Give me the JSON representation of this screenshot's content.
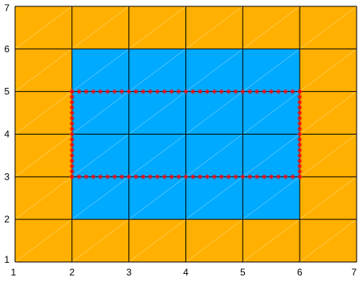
{
  "chart_data": {
    "type": "heatmap",
    "xlim": [
      1,
      7
    ],
    "ylim": [
      1,
      7
    ],
    "x_ticks": [
      "1",
      "2",
      "3",
      "4",
      "5",
      "6",
      "7"
    ],
    "y_ticks": [
      "1",
      "2",
      "3",
      "4",
      "5",
      "6",
      "7"
    ],
    "grid": true,
    "cells": [
      {
        "x": [
          1,
          2
        ],
        "y": [
          1,
          2
        ],
        "color": "#FFB000"
      },
      {
        "x": [
          2,
          3
        ],
        "y": [
          1,
          2
        ],
        "color": "#FFB000"
      },
      {
        "x": [
          3,
          4
        ],
        "y": [
          1,
          2
        ],
        "color": "#FFB000"
      },
      {
        "x": [
          4,
          5
        ],
        "y": [
          1,
          2
        ],
        "color": "#FFB000"
      },
      {
        "x": [
          5,
          6
        ],
        "y": [
          1,
          2
        ],
        "color": "#FFB000"
      },
      {
        "x": [
          6,
          7
        ],
        "y": [
          1,
          2
        ],
        "color": "#FFB000"
      },
      {
        "x": [
          1,
          2
        ],
        "y": [
          2,
          3
        ],
        "color": "#FFB000"
      },
      {
        "x": [
          2,
          3
        ],
        "y": [
          2,
          3
        ],
        "color": "#00AAFF"
      },
      {
        "x": [
          3,
          4
        ],
        "y": [
          2,
          3
        ],
        "color": "#00AAFF"
      },
      {
        "x": [
          4,
          5
        ],
        "y": [
          2,
          3
        ],
        "color": "#00AAFF"
      },
      {
        "x": [
          5,
          6
        ],
        "y": [
          2,
          3
        ],
        "color": "#00AAFF"
      },
      {
        "x": [
          6,
          7
        ],
        "y": [
          2,
          3
        ],
        "color": "#FFB000"
      },
      {
        "x": [
          1,
          2
        ],
        "y": [
          3,
          4
        ],
        "color": "#FFB000"
      },
      {
        "x": [
          2,
          3
        ],
        "y": [
          3,
          4
        ],
        "color": "#00AAFF"
      },
      {
        "x": [
          3,
          4
        ],
        "y": [
          3,
          4
        ],
        "color": "#00AAFF"
      },
      {
        "x": [
          4,
          5
        ],
        "y": [
          3,
          4
        ],
        "color": "#00AAFF"
      },
      {
        "x": [
          5,
          6
        ],
        "y": [
          3,
          4
        ],
        "color": "#00AAFF"
      },
      {
        "x": [
          6,
          7
        ],
        "y": [
          3,
          4
        ],
        "color": "#FFB000"
      },
      {
        "x": [
          1,
          2
        ],
        "y": [
          4,
          5
        ],
        "color": "#FFB000"
      },
      {
        "x": [
          2,
          3
        ],
        "y": [
          4,
          5
        ],
        "color": "#00AAFF"
      },
      {
        "x": [
          3,
          4
        ],
        "y": [
          4,
          5
        ],
        "color": "#00AAFF"
      },
      {
        "x": [
          4,
          5
        ],
        "y": [
          4,
          5
        ],
        "color": "#00AAFF"
      },
      {
        "x": [
          5,
          6
        ],
        "y": [
          4,
          5
        ],
        "color": "#00AAFF"
      },
      {
        "x": [
          6,
          7
        ],
        "y": [
          4,
          5
        ],
        "color": "#FFB000"
      },
      {
        "x": [
          1,
          2
        ],
        "y": [
          5,
          6
        ],
        "color": "#FFB000"
      },
      {
        "x": [
          2,
          3
        ],
        "y": [
          5,
          6
        ],
        "color": "#00AAFF"
      },
      {
        "x": [
          3,
          4
        ],
        "y": [
          5,
          6
        ],
        "color": "#00AAFF"
      },
      {
        "x": [
          4,
          5
        ],
        "y": [
          5,
          6
        ],
        "color": "#00AAFF"
      },
      {
        "x": [
          5,
          6
        ],
        "y": [
          5,
          6
        ],
        "color": "#00AAFF"
      },
      {
        "x": [
          6,
          7
        ],
        "y": [
          5,
          6
        ],
        "color": "#FFB000"
      },
      {
        "x": [
          1,
          2
        ],
        "y": [
          6,
          7
        ],
        "color": "#FFB000"
      },
      {
        "x": [
          2,
          3
        ],
        "y": [
          6,
          7
        ],
        "color": "#FFB000"
      },
      {
        "x": [
          3,
          4
        ],
        "y": [
          6,
          7
        ],
        "color": "#FFB000"
      },
      {
        "x": [
          4,
          5
        ],
        "y": [
          6,
          7
        ],
        "color": "#FFB000"
      },
      {
        "x": [
          5,
          6
        ],
        "y": [
          6,
          7
        ],
        "color": "#FFB000"
      },
      {
        "x": [
          6,
          7
        ],
        "y": [
          6,
          7
        ],
        "color": "#FFB000"
      }
    ],
    "overlay": {
      "type": "rectangle_outline_markers",
      "x": [
        2,
        6
      ],
      "y": [
        3,
        5
      ],
      "marker": "*",
      "color": "#FF0000",
      "points_per_unit": 8
    },
    "colors": {
      "outer": "#FFB000",
      "inner": "#00AAFF",
      "grid": "#000000",
      "marker": "#FF0000"
    }
  }
}
